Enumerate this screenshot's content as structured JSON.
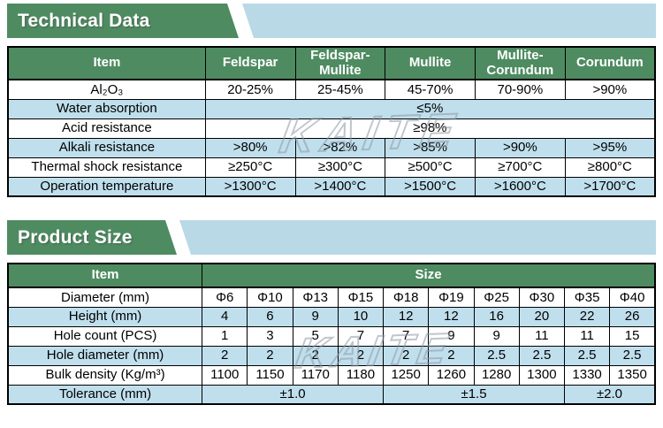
{
  "colors": {
    "banner_green": "#4e8b61",
    "banner_blue": "#b9d9e7",
    "row_blue": "#c0dfed",
    "header_text": "#ffffff",
    "body_text": "#000000",
    "border": "#000000"
  },
  "watermark": {
    "text": "KAITE"
  },
  "sections": [
    {
      "title": "Technical Data"
    },
    {
      "title": "Product Size"
    }
  ],
  "tables": {
    "technical": {
      "header": [
        {
          "t": "Item"
        },
        {
          "t": "Feldspar"
        },
        {
          "t": "Feldspar-Mullite"
        },
        {
          "t": "Mullite"
        },
        {
          "t": "Mullite-Corundum"
        },
        {
          "t": "Corundum"
        }
      ],
      "rows": [
        {
          "cells": [
            {
              "t": "Al₂O₃"
            },
            {
              "t": "20-25%"
            },
            {
              "t": "25-45%"
            },
            {
              "t": "45-70%"
            },
            {
              "t": "70-90%"
            },
            {
              "t": ">90%"
            }
          ]
        },
        {
          "cells": [
            {
              "t": "Water absorption"
            },
            {
              "t": "≤5%",
              "span": 5
            }
          ]
        },
        {
          "cells": [
            {
              "t": "Acid resistance"
            },
            {
              "t": "≥98%",
              "span": 5
            }
          ]
        },
        {
          "cells": [
            {
              "t": "Alkali resistance"
            },
            {
              "t": ">80%"
            },
            {
              "t": ">82%"
            },
            {
              "t": ">85%"
            },
            {
              "t": ">90%"
            },
            {
              "t": ">95%"
            }
          ]
        },
        {
          "cells": [
            {
              "t": "Thermal shock resistance"
            },
            {
              "t": "≥250°C"
            },
            {
              "t": "≥300°C"
            },
            {
              "t": "≥500°C"
            },
            {
              "t": "≥700°C"
            },
            {
              "t": "≥800°C"
            }
          ]
        },
        {
          "cells": [
            {
              "t": "Operation temperature"
            },
            {
              "t": ">1300°C"
            },
            {
              "t": ">1400°C"
            },
            {
              "t": ">1500°C"
            },
            {
              "t": ">1600°C"
            },
            {
              "t": ">1700°C"
            }
          ]
        }
      ]
    },
    "size": {
      "header": [
        {
          "t": "Item"
        },
        {
          "t": "Size",
          "span": 10
        }
      ],
      "rows": [
        {
          "cells": [
            {
              "t": "Diameter (mm)"
            },
            {
              "t": "Φ6"
            },
            {
              "t": "Φ10"
            },
            {
              "t": "Φ13"
            },
            {
              "t": "Φ15"
            },
            {
              "t": "Φ18"
            },
            {
              "t": "Φ19"
            },
            {
              "t": "Φ25"
            },
            {
              "t": "Φ30"
            },
            {
              "t": "Φ35"
            },
            {
              "t": "Φ40"
            }
          ]
        },
        {
          "cells": [
            {
              "t": "Height (mm)"
            },
            {
              "t": "4"
            },
            {
              "t": "6"
            },
            {
              "t": "9"
            },
            {
              "t": "10"
            },
            {
              "t": "12"
            },
            {
              "t": "12"
            },
            {
              "t": "16"
            },
            {
              "t": "20"
            },
            {
              "t": "22"
            },
            {
              "t": "26"
            }
          ]
        },
        {
          "cells": [
            {
              "t": "Hole count (PCS)"
            },
            {
              "t": "1"
            },
            {
              "t": "3"
            },
            {
              "t": "5"
            },
            {
              "t": "7"
            },
            {
              "t": "7"
            },
            {
              "t": "9"
            },
            {
              "t": "9"
            },
            {
              "t": "11"
            },
            {
              "t": "11"
            },
            {
              "t": "15"
            }
          ]
        },
        {
          "cells": [
            {
              "t": "Hole diameter (mm)"
            },
            {
              "t": "2"
            },
            {
              "t": "2"
            },
            {
              "t": "2"
            },
            {
              "t": "2"
            },
            {
              "t": "2"
            },
            {
              "t": "2"
            },
            {
              "t": "2.5"
            },
            {
              "t": "2.5"
            },
            {
              "t": "2.5"
            },
            {
              "t": "2.5"
            }
          ]
        },
        {
          "cells": [
            {
              "t": "Bulk density (Kg/m³)"
            },
            {
              "t": "1100"
            },
            {
              "t": "1150"
            },
            {
              "t": "1170"
            },
            {
              "t": "1180"
            },
            {
              "t": "1250"
            },
            {
              "t": "1260"
            },
            {
              "t": "1280"
            },
            {
              "t": "1300"
            },
            {
              "t": "1330"
            },
            {
              "t": "1350"
            }
          ]
        },
        {
          "cells": [
            {
              "t": "Tolerance (mm)"
            },
            {
              "t": "±1.0",
              "span": 4
            },
            {
              "t": "±1.5",
              "span": 4
            },
            {
              "t": "±2.0",
              "span": 2
            }
          ]
        }
      ]
    }
  }
}
